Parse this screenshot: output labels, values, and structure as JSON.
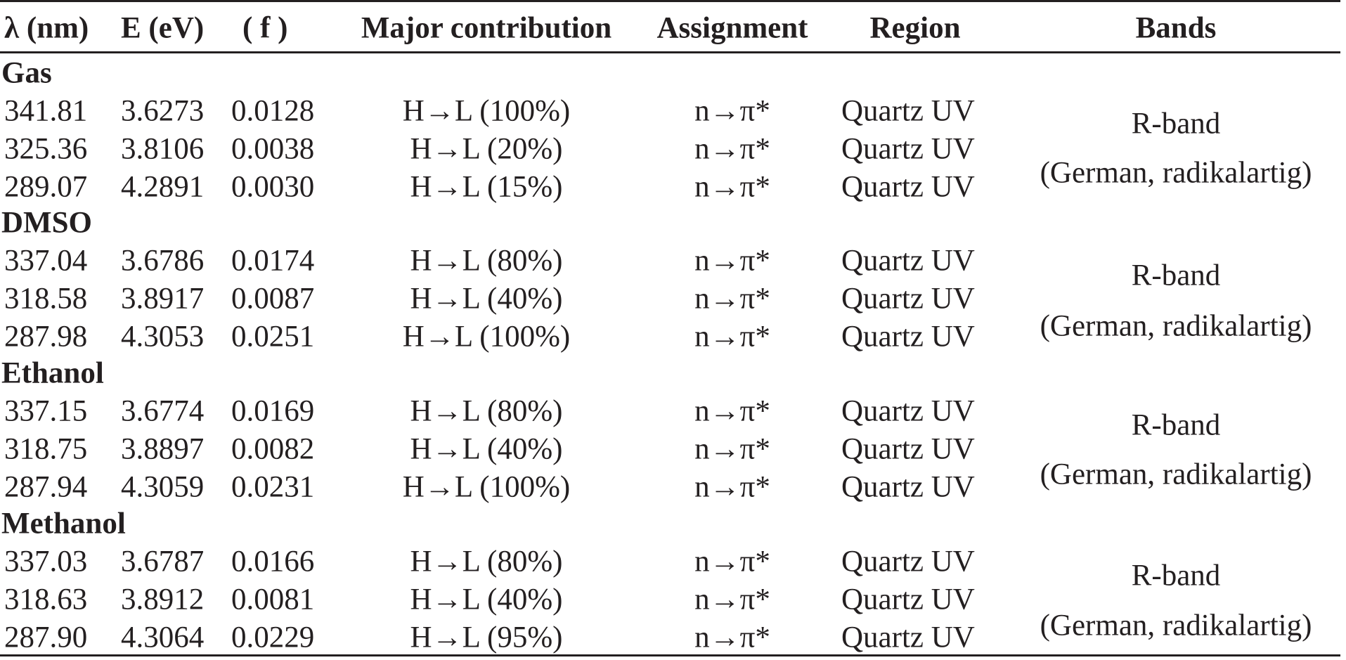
{
  "headers": [
    "λ (nm)",
    "E (eV)",
    "( f )",
    "Major contribution",
    "Assignment",
    "Region",
    "Bands"
  ],
  "groups": [
    {
      "name": "Gas",
      "rows": [
        [
          "341.81",
          "3.6273",
          "0.0128",
          "H→L (100%)",
          "n→π*",
          "Quartz UV"
        ],
        [
          "325.36",
          "3.8106",
          "0.0038",
          "H→L (20%)",
          "n→π*",
          "Quartz UV"
        ],
        [
          "289.07",
          "4.2891",
          "0.0030",
          "H→L (15%)",
          "n→π*",
          "Quartz UV"
        ]
      ],
      "band": "R-band",
      "band_note": "(German, radikalartig)"
    },
    {
      "name": "DMSO",
      "rows": [
        [
          "337.04",
          "3.6786",
          "0.0174",
          "H→L (80%)",
          "n→π*",
          "Quartz UV"
        ],
        [
          "318.58",
          "3.8917",
          "0.0087",
          "H→L (40%)",
          "n→π*",
          "Quartz UV"
        ],
        [
          "287.98",
          "4.3053",
          "0.0251",
          "H→L (100%)",
          "n→π*",
          "Quartz UV"
        ]
      ],
      "band": "R-band",
      "band_note": "(German, radikalartig)"
    },
    {
      "name": "Ethanol",
      "rows": [
        [
          "337.15",
          "3.6774",
          "0.0169",
          "H→L (80%)",
          "n→π*",
          "Quartz UV"
        ],
        [
          "318.75",
          "3.8897",
          "0.0082",
          "H→L (40%)",
          "n→π*",
          "Quartz UV"
        ],
        [
          "287.94",
          "4.3059",
          "0.0231",
          "H→L (100%)",
          "n→π*",
          "Quartz UV"
        ]
      ],
      "band": "R-band",
      "band_note": "(German, radikalartig)"
    },
    {
      "name": "Methanol",
      "rows": [
        [
          "337.03",
          "3.6787",
          "0.0166",
          "H→L (80%)",
          "n→π*",
          "Quartz UV"
        ],
        [
          "318.63",
          "3.8912",
          "0.0081",
          "H→L (40%)",
          "n→π*",
          "Quartz UV"
        ],
        [
          "287.90",
          "4.3064",
          "0.0229",
          "H→L (95%)",
          "n→π*",
          "Quartz UV"
        ]
      ],
      "band": "R-band",
      "band_note": "(German, radikalartig)"
    }
  ]
}
